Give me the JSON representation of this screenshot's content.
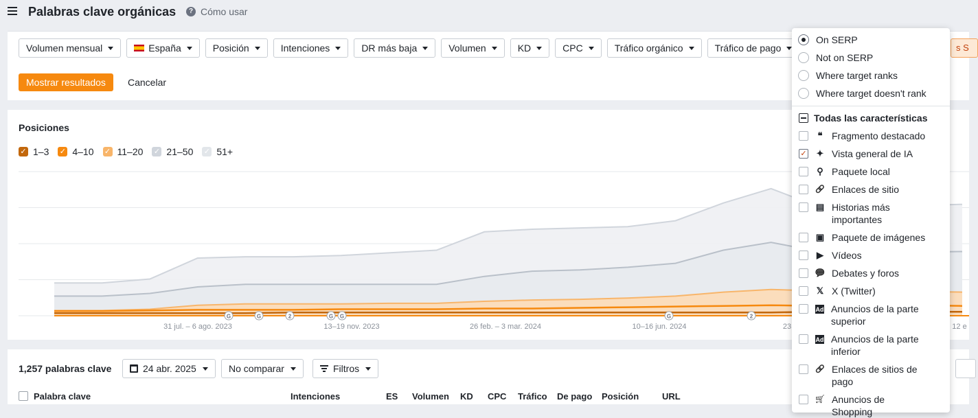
{
  "header": {
    "title": "Palabras clave orgánicas",
    "help_label": "Cómo usar"
  },
  "filters": {
    "buttons": [
      "Volumen mensual",
      "España",
      "Posición",
      "Intenciones",
      "DR más baja",
      "Volumen",
      "KD",
      "CPC",
      "Tráfico orgánico",
      "Tráfico de pago"
    ],
    "partial_button": "s S",
    "show_results": "Mostrar resultados",
    "cancel": "Cancelar"
  },
  "chart": {
    "title": "Posiciones",
    "legend": [
      {
        "label": "1–3",
        "color": "#c2670c",
        "checked": true
      },
      {
        "label": "4–10",
        "color": "#f6890f",
        "checked": true
      },
      {
        "label": "11–20",
        "color": "#f8b56a",
        "checked": true
      },
      {
        "label": "21–50",
        "color": "#d0d5dc",
        "checked": true
      },
      {
        "label": "51+",
        "color": "#e2e6ea",
        "checked": true
      }
    ],
    "x_labels": [
      "31 jul. – 6 ago. 2023",
      "13–19 nov. 2023",
      "26 feb. – 3 mar. 2024",
      "10–16 jun. 2024",
      "23",
      "12 e"
    ],
    "markers": [
      "G",
      "G",
      "2",
      "G",
      "G",
      "G",
      "2"
    ]
  },
  "chart_data": {
    "type": "area",
    "series": [
      {
        "name": "1–3",
        "values": [
          4,
          4,
          4,
          4,
          4,
          5,
          5,
          5,
          5,
          5,
          5,
          5,
          5,
          5,
          5,
          5,
          6,
          6,
          6,
          6
        ]
      },
      {
        "name": "4–10",
        "values": [
          7,
          7,
          8,
          9,
          9,
          9,
          10,
          10,
          10,
          11,
          11,
          12,
          13,
          14,
          15,
          16,
          15,
          15,
          16,
          15
        ]
      },
      {
        "name": "11–20",
        "values": [
          8,
          8,
          10,
          16,
          18,
          18,
          18,
          19,
          19,
          22,
          24,
          25,
          27,
          30,
          36,
          40,
          38,
          37,
          37,
          36
        ]
      },
      {
        "name": "21–50",
        "values": [
          30,
          30,
          34,
          44,
          48,
          48,
          48,
          48,
          48,
          60,
          68,
          70,
          74,
          80,
          100,
          112,
          98,
          95,
          97,
          98
        ]
      },
      {
        "name": "51+",
        "values": [
          50,
          50,
          56,
          88,
          90,
          90,
          92,
          96,
          100,
          128,
          132,
          134,
          136,
          145,
          172,
          194,
          166,
          165,
          168,
          170
        ]
      }
    ],
    "ylim": [
      0,
      220
    ],
    "grid": true,
    "legend_position": "top-left"
  },
  "table": {
    "count_label": "1,257 palabras clave",
    "date_label": "24 abr. 2025",
    "compare_label": "No comparar",
    "filters_label": "Filtros",
    "columns": [
      "Palabra clave",
      "Intenciones",
      "ES",
      "Volumen",
      "KD",
      "CPC",
      "Tráfico",
      "De pago",
      "Posición",
      "URL"
    ]
  },
  "serp_dropdown": {
    "radios": [
      {
        "label": "On SERP",
        "selected": true
      },
      {
        "label": "Not on SERP",
        "selected": false
      },
      {
        "label": "Where target ranks",
        "selected": false
      },
      {
        "label": "Where target doesn't rank",
        "selected": false
      }
    ],
    "all_features_label": "Todas las características",
    "features": [
      {
        "label": "Fragmento destacado",
        "icon": "quote-icon",
        "checked": false
      },
      {
        "label": "Vista general de IA",
        "icon": "sparkle-icon",
        "checked": true
      },
      {
        "label": "Paquete local",
        "icon": "map-pin-icon",
        "checked": false
      },
      {
        "label": "Enlaces de sitio",
        "icon": "link-icon",
        "checked": false
      },
      {
        "label": "Historias más importantes",
        "icon": "news-icon",
        "checked": false
      },
      {
        "label": "Paquete de imágenes",
        "icon": "image-icon",
        "checked": false
      },
      {
        "label": "Vídeos",
        "icon": "video-icon",
        "checked": false
      },
      {
        "label": "Debates y foros",
        "icon": "chat-icon",
        "checked": false
      },
      {
        "label": "X (Twitter)",
        "icon": "x-icon",
        "checked": false
      },
      {
        "label": "Anuncios de la parte superior",
        "icon": "ad-top-icon",
        "checked": false
      },
      {
        "label": "Anuncios de la parte inferior",
        "icon": "ad-bottom-icon",
        "checked": false
      },
      {
        "label": "Enlaces de sitios de pago",
        "icon": "link-icon",
        "checked": false
      },
      {
        "label": "Anuncios de Shopping",
        "icon": "cart-icon",
        "checked": false
      }
    ]
  }
}
